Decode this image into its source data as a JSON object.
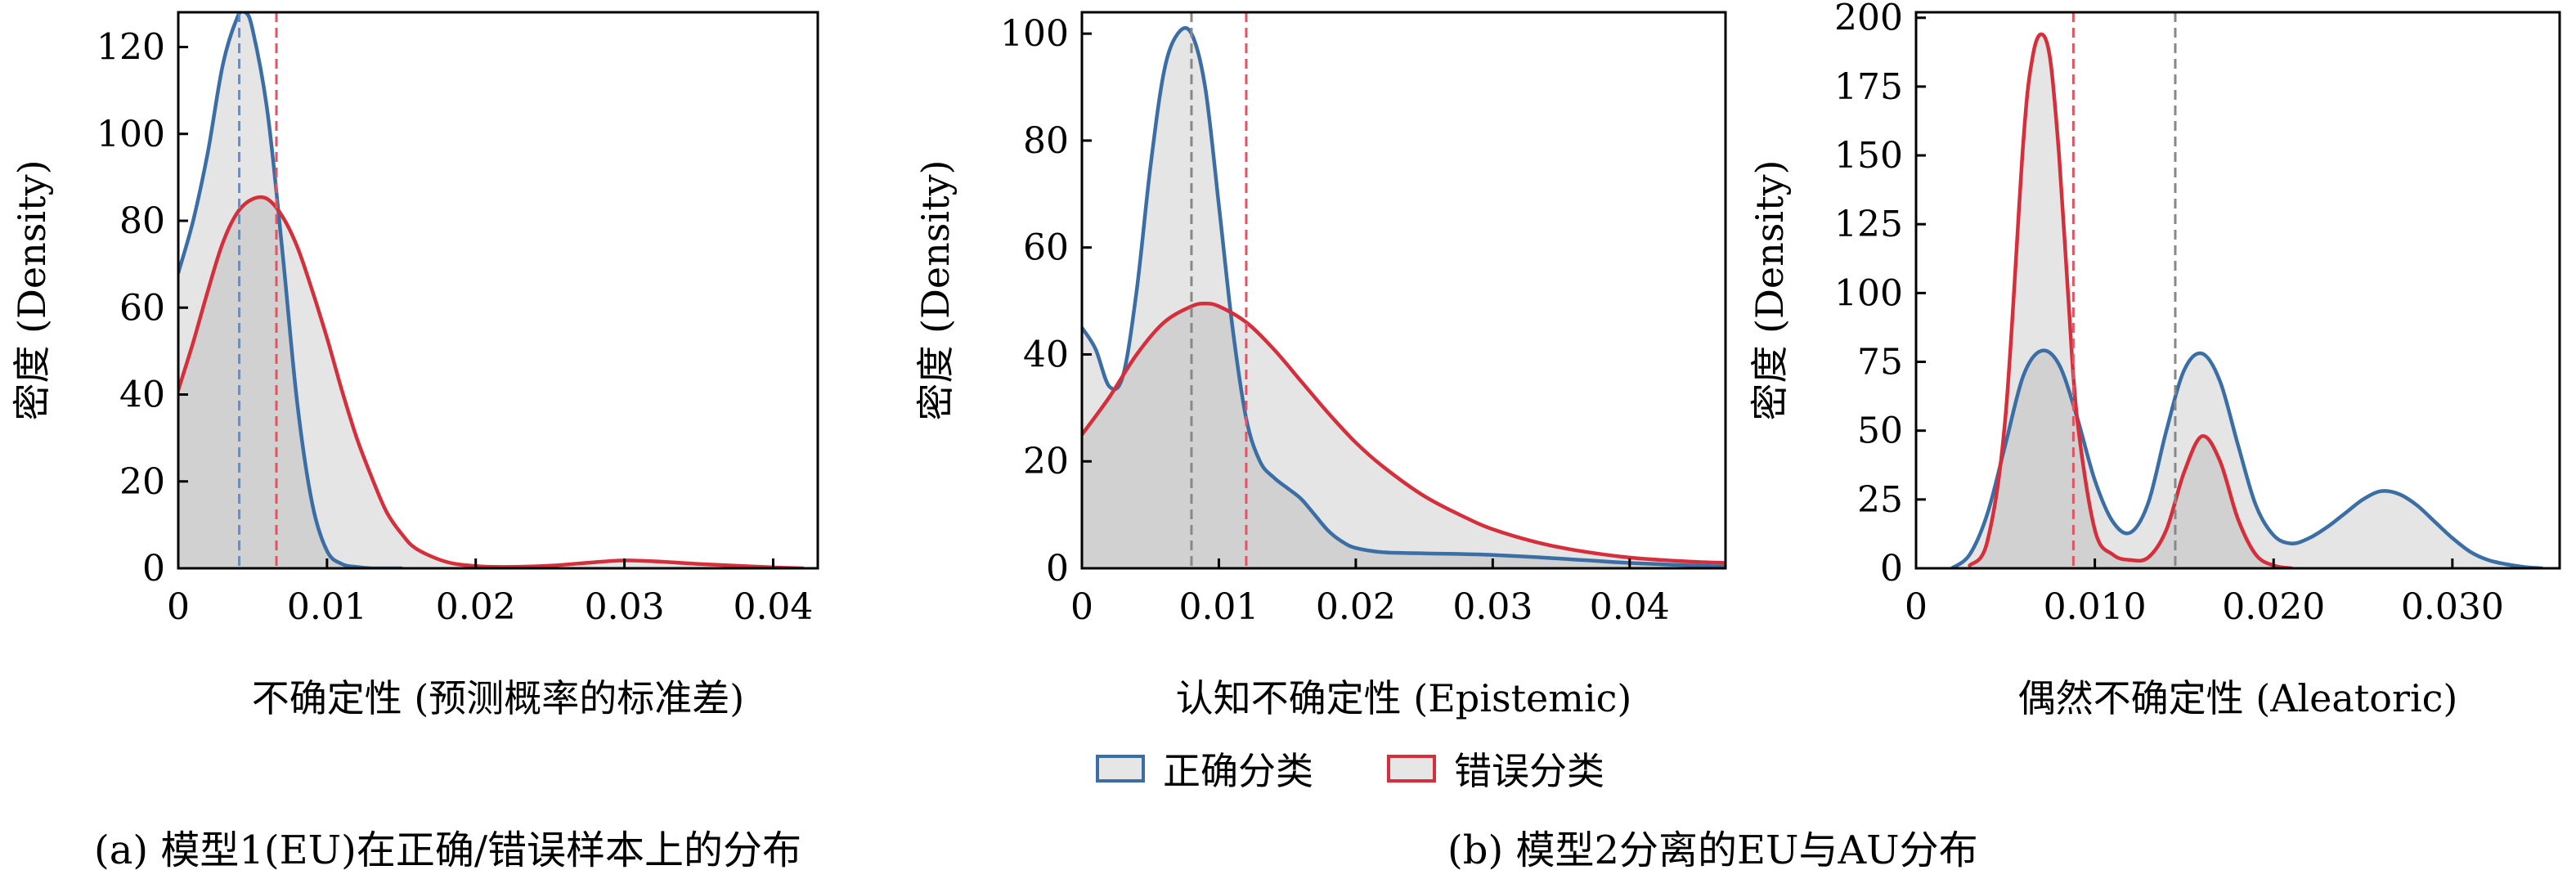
{
  "colors": {
    "correct": "#3a6ea5",
    "error": "#d62f3c",
    "fill_light": "#e6e6e6",
    "fill_overlap": "#cfcfcf",
    "vline_correct": "#888888",
    "vline_error": "#e05563"
  },
  "legend": {
    "correct_label": "正确分类",
    "error_label": "错误分类"
  },
  "captions": {
    "a": "(a) 模型1(EU)在正确/错误样本上的分布",
    "b": "(b) 模型2分离的EU与AU分布"
  },
  "chart_data": [
    {
      "type": "line",
      "subtype": "density-area",
      "xlabel": "不确定性 (预测概率的标准差)",
      "ylabel": "密度 (Density)",
      "xlim": [
        0,
        0.043
      ],
      "ylim": [
        0,
        128
      ],
      "xticks": [
        0,
        0.01,
        0.02,
        0.03,
        0.04
      ],
      "xtick_labels": [
        "0",
        "0.01",
        "0.02",
        "0.03",
        "0.04"
      ],
      "yticks": [
        0,
        20,
        40,
        60,
        80,
        100,
        120
      ],
      "ytick_labels": [
        "0",
        "20",
        "40",
        "60",
        "80",
        "100",
        "120"
      ],
      "series": [
        {
          "name": "正确分类",
          "color_key": "correct",
          "vline": 0.0041,
          "x": [
            0,
            0.001,
            0.002,
            0.003,
            0.004,
            0.0045,
            0.005,
            0.006,
            0.007,
            0.008,
            0.009,
            0.01,
            0.011,
            0.012,
            0.013,
            0.015
          ],
          "y": [
            68,
            80,
            96,
            116,
            127,
            128,
            124,
            105,
            73,
            38,
            15,
            4,
            1,
            0.3,
            0,
            0
          ]
        },
        {
          "name": "错误分类",
          "color_key": "error",
          "vline": 0.0066,
          "x": [
            0,
            0.001,
            0.002,
            0.003,
            0.004,
            0.005,
            0.006,
            0.007,
            0.008,
            0.009,
            0.01,
            0.011,
            0.012,
            0.013,
            0.014,
            0.015,
            0.016,
            0.018,
            0.02,
            0.022,
            0.025,
            0.028,
            0.03,
            0.032,
            0.035,
            0.038,
            0.04,
            0.042
          ],
          "y": [
            41,
            52,
            64,
            75,
            82,
            85,
            85,
            81,
            74,
            64,
            53,
            41,
            30,
            21,
            13,
            8,
            4.5,
            1.5,
            0.5,
            0.3,
            0.6,
            1.4,
            1.8,
            1.6,
            1,
            0.5,
            0.2,
            0
          ]
        }
      ]
    },
    {
      "type": "line",
      "subtype": "density-area",
      "xlabel": "认知不确定性 (Epistemic)",
      "ylabel": "密度 (Density)",
      "xlim": [
        0,
        0.047
      ],
      "ylim": [
        0,
        104
      ],
      "xticks": [
        0,
        0.01,
        0.02,
        0.03,
        0.04
      ],
      "xtick_labels": [
        "0",
        "0.01",
        "0.02",
        "0.03",
        "0.04"
      ],
      "yticks": [
        0,
        20,
        40,
        60,
        80,
        100
      ],
      "ytick_labels": [
        "0",
        "20",
        "40",
        "60",
        "80",
        "100"
      ],
      "series": [
        {
          "name": "正确分类",
          "color_key": "correct",
          "vline": 0.008,
          "x": [
            0,
            0.001,
            0.002,
            0.003,
            0.004,
            0.005,
            0.006,
            0.007,
            0.008,
            0.009,
            0.01,
            0.011,
            0.012,
            0.013,
            0.014,
            0.015,
            0.016,
            0.017,
            0.018,
            0.019,
            0.02,
            0.022,
            0.025,
            0.03,
            0.035,
            0.04,
            0.047
          ],
          "y": [
            45,
            41,
            34,
            36,
            52,
            75,
            93,
            100,
            100,
            90,
            68,
            45,
            28,
            20,
            17,
            15,
            13,
            10,
            7,
            5,
            3.8,
            3,
            2.8,
            2.5,
            1.8,
            1,
            0.3
          ]
        },
        {
          "name": "错误分类",
          "color_key": "error",
          "vline": 0.012,
          "x": [
            0,
            0.002,
            0.004,
            0.006,
            0.008,
            0.009,
            0.01,
            0.012,
            0.014,
            0.016,
            0.018,
            0.02,
            0.022,
            0.025,
            0.028,
            0.03,
            0.033,
            0.036,
            0.04,
            0.044,
            0.047
          ],
          "y": [
            25,
            32,
            40,
            46,
            49,
            49.5,
            49,
            46,
            41,
            35,
            29,
            23.5,
            19,
            13.5,
            9.5,
            7.3,
            5,
            3.4,
            2,
            1.3,
            1
          ]
        }
      ]
    },
    {
      "type": "line",
      "subtype": "density-area",
      "xlabel": "偶然不确定性 (Aleatoric)",
      "ylabel": "密度 (Density)",
      "xlim": [
        0,
        0.036
      ],
      "ylim": [
        0,
        202
      ],
      "xticks": [
        0,
        0.01,
        0.02,
        0.03
      ],
      "xtick_labels": [
        "0",
        "0.010",
        "0.020",
        "0.030"
      ],
      "yticks": [
        0,
        25,
        50,
        75,
        100,
        125,
        150,
        175,
        200
      ],
      "ytick_labels": [
        "0",
        "25",
        "50",
        "75",
        "100",
        "125",
        "150",
        "175",
        "200"
      ],
      "series": [
        {
          "name": "正确分类",
          "color_key": "correct",
          "vline": 0.0145,
          "x": [
            0.002,
            0.003,
            0.004,
            0.005,
            0.006,
            0.007,
            0.008,
            0.009,
            0.01,
            0.011,
            0.012,
            0.013,
            0.014,
            0.015,
            0.016,
            0.017,
            0.018,
            0.019,
            0.02,
            0.021,
            0.022,
            0.023,
            0.024,
            0.025,
            0.026,
            0.027,
            0.028,
            0.029,
            0.03,
            0.031,
            0.032,
            0.033,
            0.034,
            0.035
          ],
          "y": [
            0,
            5,
            20,
            45,
            70,
            79,
            74,
            55,
            32,
            17,
            13,
            24,
            50,
            72,
            78,
            68,
            45,
            23,
            12,
            9,
            11,
            15,
            20,
            25,
            28,
            27,
            23,
            17,
            11,
            6,
            3,
            1.5,
            0.5,
            0
          ]
        },
        {
          "name": "错误分类",
          "color_key": "error",
          "vline": 0.0088,
          "x": [
            0.003,
            0.004,
            0.005,
            0.006,
            0.0065,
            0.007,
            0.0075,
            0.008,
            0.0085,
            0.009,
            0.01,
            0.011,
            0.012,
            0.013,
            0.014,
            0.015,
            0.016,
            0.017,
            0.018,
            0.019,
            0.02,
            0.021
          ],
          "y": [
            1,
            10,
            55,
            155,
            185,
            194,
            185,
            150,
            100,
            55,
            14,
            5,
            3,
            4,
            14,
            35,
            48,
            39,
            18,
            5,
            1,
            0
          ]
        }
      ]
    }
  ]
}
